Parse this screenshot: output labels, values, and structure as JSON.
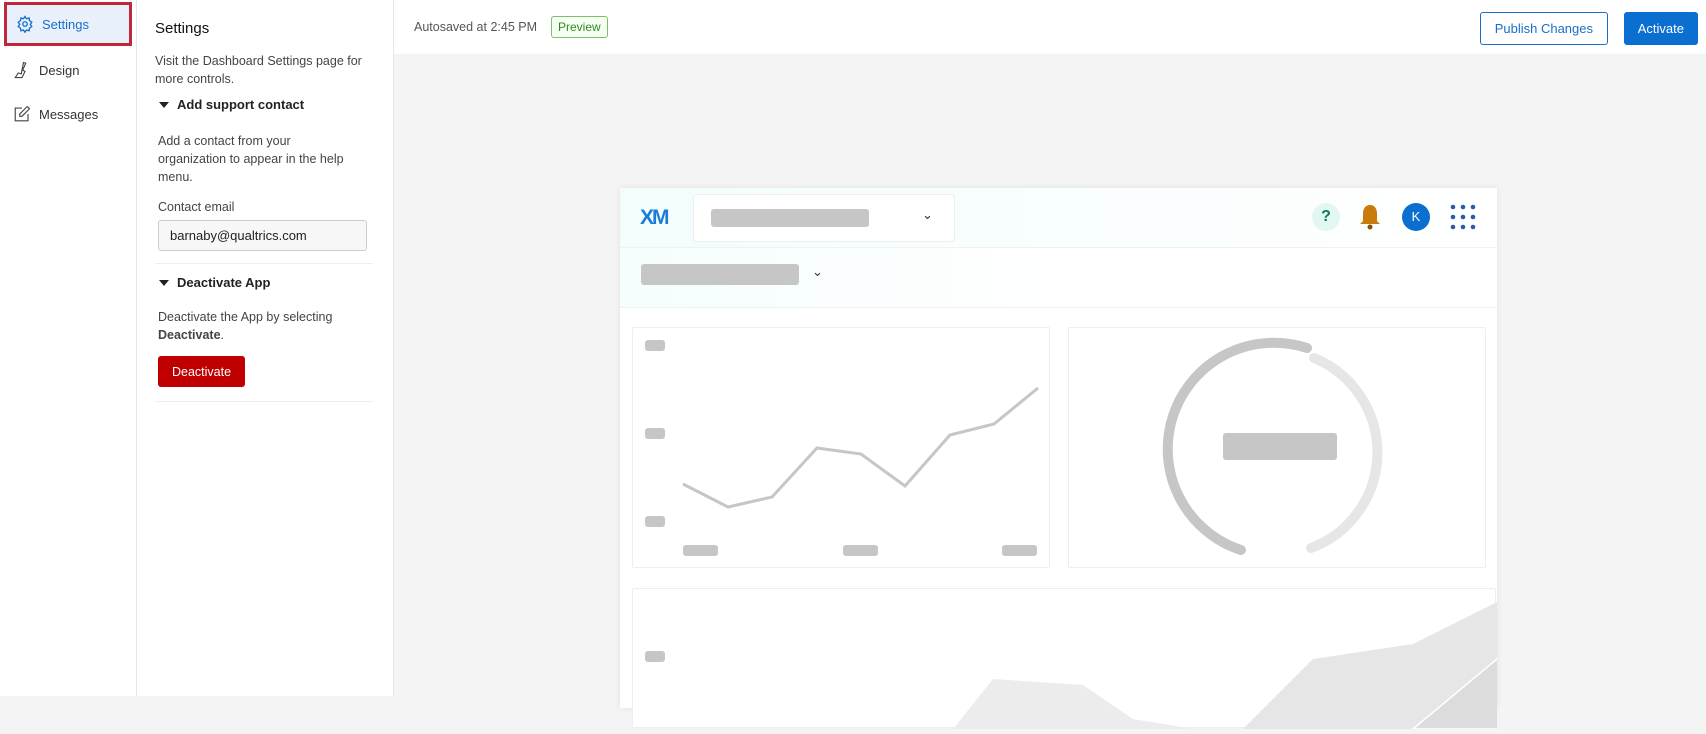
{
  "nav": {
    "items": [
      {
        "label": "Settings",
        "icon": "gear-icon",
        "active": true
      },
      {
        "label": "Design",
        "icon": "brush-icon"
      },
      {
        "label": "Messages",
        "icon": "edit-icon"
      }
    ]
  },
  "panel": {
    "title": "Settings",
    "intro": "Visit the Dashboard Settings page for more controls.",
    "support": {
      "heading": "Add support contact",
      "desc": "Add a contact from your organization to appear in the help menu.",
      "email_label": "Contact email",
      "email_value": "barnaby@qualtrics.com"
    },
    "deactivate": {
      "heading": "Deactivate App",
      "desc": "Deactivate the App by selecting ",
      "desc_bold": "Deactivate",
      "desc_end": ".",
      "button": "Deactivate"
    }
  },
  "topbar": {
    "autosave": "Autosaved at 2:45 PM",
    "badge": "Preview",
    "publish": "Publish Changes",
    "activate": "Activate"
  },
  "preview": {
    "logo": "XM",
    "avatar": "K",
    "colors": {
      "bell": "#c97b0c",
      "avatar": "#0b6fd1",
      "accent": "#0b6fd1"
    }
  }
}
